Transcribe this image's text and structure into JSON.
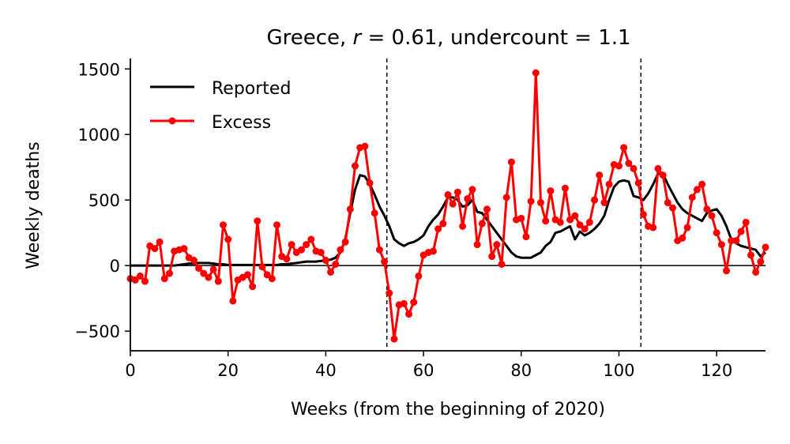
{
  "chart_data": {
    "type": "line",
    "title": "Greece, r = 0.61, undercount = 1.1",
    "title_parts": {
      "prefix": "Greece, ",
      "r_symbol": "r",
      "r_value": " = 0.61, undercount = 1.1"
    },
    "xlabel": "Weeks (from the beginning of 2020)",
    "ylabel": "Weekly deaths",
    "xlim": [
      0,
      130
    ],
    "ylim": [
      -650,
      1580
    ],
    "xticks": [
      0,
      20,
      40,
      60,
      80,
      100,
      120
    ],
    "xtick_labels": [
      "0",
      "20",
      "40",
      "60",
      "80",
      "100",
      "120"
    ],
    "yticks": [
      -500,
      0,
      500,
      1000,
      1500
    ],
    "ytick_labels": [
      "−500",
      "0",
      "500",
      "1000",
      "1500"
    ],
    "grid": false,
    "legend_position": "top-left",
    "zero_line": 0,
    "vertical_lines": [
      52.5,
      104.5
    ],
    "series": [
      {
        "name": "Reported",
        "color": "#000000",
        "marker": "none",
        "x": [
          0,
          1,
          2,
          3,
          4,
          5,
          6,
          7,
          8,
          9,
          10,
          11,
          12,
          13,
          14,
          15,
          16,
          17,
          18,
          19,
          20,
          21,
          22,
          23,
          24,
          25,
          26,
          27,
          28,
          29,
          30,
          31,
          32,
          33,
          34,
          35,
          36,
          37,
          38,
          39,
          40,
          41,
          42,
          43,
          44,
          45,
          46,
          47,
          48,
          49,
          50,
          51,
          52,
          53,
          54,
          55,
          56,
          57,
          58,
          59,
          60,
          61,
          62,
          63,
          64,
          65,
          66,
          67,
          68,
          69,
          70,
          71,
          72,
          73,
          74,
          75,
          76,
          77,
          78,
          79,
          80,
          81,
          82,
          83,
          84,
          85,
          86,
          87,
          88,
          89,
          90,
          91,
          92,
          93,
          94,
          95,
          96,
          97,
          98,
          99,
          100,
          101,
          102,
          103,
          104,
          105,
          106,
          107,
          108,
          109,
          110,
          111,
          112,
          113,
          114,
          115,
          116,
          117,
          118,
          119,
          120,
          121,
          122,
          123,
          124,
          125,
          126,
          127,
          128,
          129,
          130
        ],
        "values": [
          0,
          0,
          0,
          0,
          0,
          0,
          0,
          0,
          0,
          0,
          5,
          10,
          15,
          15,
          20,
          20,
          20,
          15,
          10,
          10,
          5,
          5,
          5,
          5,
          5,
          5,
          5,
          5,
          5,
          5,
          5,
          10,
          10,
          15,
          20,
          25,
          30,
          30,
          30,
          35,
          40,
          45,
          60,
          100,
          200,
          400,
          580,
          690,
          680,
          620,
          540,
          450,
          380,
          300,
          200,
          170,
          150,
          170,
          180,
          200,
          230,
          300,
          350,
          390,
          450,
          520,
          520,
          500,
          450,
          460,
          500,
          410,
          400,
          350,
          300,
          250,
          200,
          150,
          100,
          70,
          60,
          60,
          60,
          80,
          100,
          150,
          180,
          250,
          260,
          280,
          300,
          200,
          260,
          230,
          250,
          280,
          320,
          380,
          500,
          600,
          640,
          650,
          640,
          530,
          520,
          500,
          550,
          620,
          700,
          700,
          620,
          550,
          480,
          430,
          400,
          380,
          360,
          340,
          400,
          420,
          430,
          380,
          300,
          200,
          170,
          150,
          140,
          130,
          120,
          70,
          100
        ]
      },
      {
        "name": "Excess",
        "color": "#ff0000",
        "marker": "dot",
        "x": [
          0,
          1,
          2,
          3,
          4,
          5,
          6,
          7,
          8,
          9,
          10,
          11,
          12,
          13,
          14,
          15,
          16,
          17,
          18,
          19,
          20,
          21,
          22,
          23,
          24,
          25,
          26,
          27,
          28,
          29,
          30,
          31,
          32,
          33,
          34,
          35,
          36,
          37,
          38,
          39,
          40,
          41,
          42,
          43,
          44,
          45,
          46,
          47,
          48,
          49,
          50,
          51,
          52,
          53,
          54,
          55,
          56,
          57,
          58,
          59,
          60,
          61,
          62,
          63,
          64,
          65,
          66,
          67,
          68,
          69,
          70,
          71,
          72,
          73,
          74,
          75,
          76,
          77,
          78,
          79,
          80,
          81,
          82,
          83,
          84,
          85,
          86,
          87,
          88,
          89,
          90,
          91,
          92,
          93,
          94,
          95,
          96,
          97,
          98,
          99,
          100,
          101,
          102,
          103,
          104,
          105,
          106,
          107,
          108,
          109,
          110,
          111,
          112,
          113,
          114,
          115,
          116,
          117,
          118,
          119,
          120,
          121,
          122,
          123,
          124,
          125,
          126,
          127,
          128,
          129,
          130
        ],
        "values": [
          -100,
          -110,
          -80,
          -120,
          150,
          130,
          180,
          -100,
          -60,
          110,
          120,
          130,
          60,
          40,
          -20,
          -60,
          -90,
          -30,
          -120,
          310,
          200,
          -270,
          -110,
          -90,
          -70,
          -160,
          340,
          -10,
          -70,
          -100,
          310,
          70,
          50,
          160,
          100,
          120,
          160,
          200,
          110,
          100,
          40,
          -50,
          10,
          120,
          180,
          430,
          760,
          900,
          910,
          630,
          400,
          120,
          30,
          -210,
          -560,
          -300,
          -290,
          -370,
          -280,
          -80,
          80,
          100,
          110,
          280,
          320,
          540,
          470,
          560,
          300,
          510,
          580,
          160,
          320,
          430,
          70,
          160,
          10,
          520,
          790,
          350,
          360,
          220,
          490,
          1470,
          480,
          340,
          570,
          350,
          330,
          590,
          350,
          380,
          310,
          280,
          330,
          500,
          690,
          480,
          620,
          770,
          760,
          900,
          780,
          740,
          630,
          390,
          300,
          290,
          740,
          690,
          480,
          440,
          190,
          210,
          290,
          520,
          580,
          620,
          430,
          380,
          250,
          160,
          -40,
          190,
          190,
          260,
          330,
          80,
          -50,
          30,
          140
        ]
      }
    ]
  }
}
